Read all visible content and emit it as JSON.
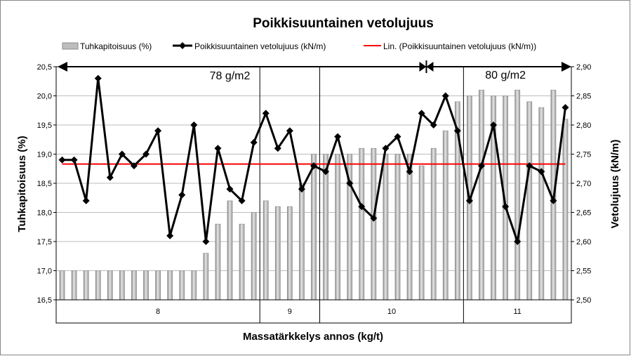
{
  "chart_data": {
    "type": "bar",
    "title": "Poikkisuuntainen vetolujuus",
    "xlabel": "Massatärkkelys annos (kg/t)",
    "ylabel_left": "Tuhkapitoisuus (%)",
    "ylabel_right": "Vetolujuus (kN/m)",
    "left_ylim": [
      16.5,
      20.5
    ],
    "left_ticks": [
      "16,5",
      "17,0",
      "17,5",
      "18,0",
      "18,5",
      "19,0",
      "19,5",
      "20,0",
      "20,5"
    ],
    "right_ylim": [
      2.5,
      2.9
    ],
    "right_ticks": [
      "2,50",
      "2,55",
      "2,60",
      "2,65",
      "2,70",
      "2,75",
      "2,80",
      "2,85",
      "2,90"
    ],
    "legend": [
      {
        "label": "Tuhkapitoisuus (%)",
        "kind": "bar"
      },
      {
        "label": "Poikkisuuntainen vetolujuus (kN/m)",
        "kind": "line-marker"
      },
      {
        "label": "Lin. (Poikkisuuntainen vetolujuus (kN/m))",
        "kind": "trend"
      }
    ],
    "groups": [
      {
        "label": "8",
        "count": 17
      },
      {
        "label": "9",
        "count": 5
      },
      {
        "label": "10",
        "count": 12
      },
      {
        "label": "11",
        "count": 9
      }
    ],
    "series": [
      {
        "name": "Tuhkapitoisuus (%)",
        "axis": "left",
        "type": "bar",
        "color": "#a6a6a6",
        "values": [
          17.0,
          17.0,
          17.0,
          17.0,
          17.0,
          17.0,
          17.0,
          17.0,
          17.0,
          17.0,
          17.0,
          17.0,
          17.3,
          17.8,
          18.2,
          17.8,
          18.0,
          18.2,
          18.1,
          18.1,
          18.5,
          19.0,
          19.0,
          19.0,
          19.0,
          19.1,
          19.1,
          19.0,
          19.0,
          19.0,
          18.8,
          19.1,
          19.4,
          19.9,
          20.0,
          20.1,
          20.0,
          20.0,
          20.1,
          19.9,
          19.8,
          20.1,
          19.6
        ]
      },
      {
        "name": "Poikkisuuntainen vetolujuus (kN/m)",
        "axis": "right",
        "type": "line",
        "color": "#000000",
        "values": [
          2.74,
          2.74,
          2.67,
          2.88,
          2.71,
          2.75,
          2.73,
          2.75,
          2.79,
          2.61,
          2.68,
          2.8,
          2.6,
          2.76,
          2.69,
          2.67,
          2.77,
          2.82,
          2.76,
          2.79,
          2.69,
          2.73,
          2.72,
          2.78,
          2.7,
          2.66,
          2.64,
          2.76,
          2.78,
          2.72,
          2.82,
          2.8,
          2.85,
          2.79,
          2.67,
          2.73,
          2.8,
          2.66,
          2.6,
          2.73,
          2.72,
          2.67,
          2.83
        ]
      },
      {
        "name": "Lin. (Poikkisuuntainen vetolujuus (kN/m))",
        "axis": "right",
        "type": "trend",
        "color": "#ff0000",
        "values": [
          2.733,
          2.733
        ]
      }
    ],
    "annotations": [
      {
        "text": "78 g/m2",
        "from_index": 0,
        "to_index": 33
      },
      {
        "text": "80 g/m2",
        "from_index": 33,
        "to_index": 42
      }
    ]
  }
}
